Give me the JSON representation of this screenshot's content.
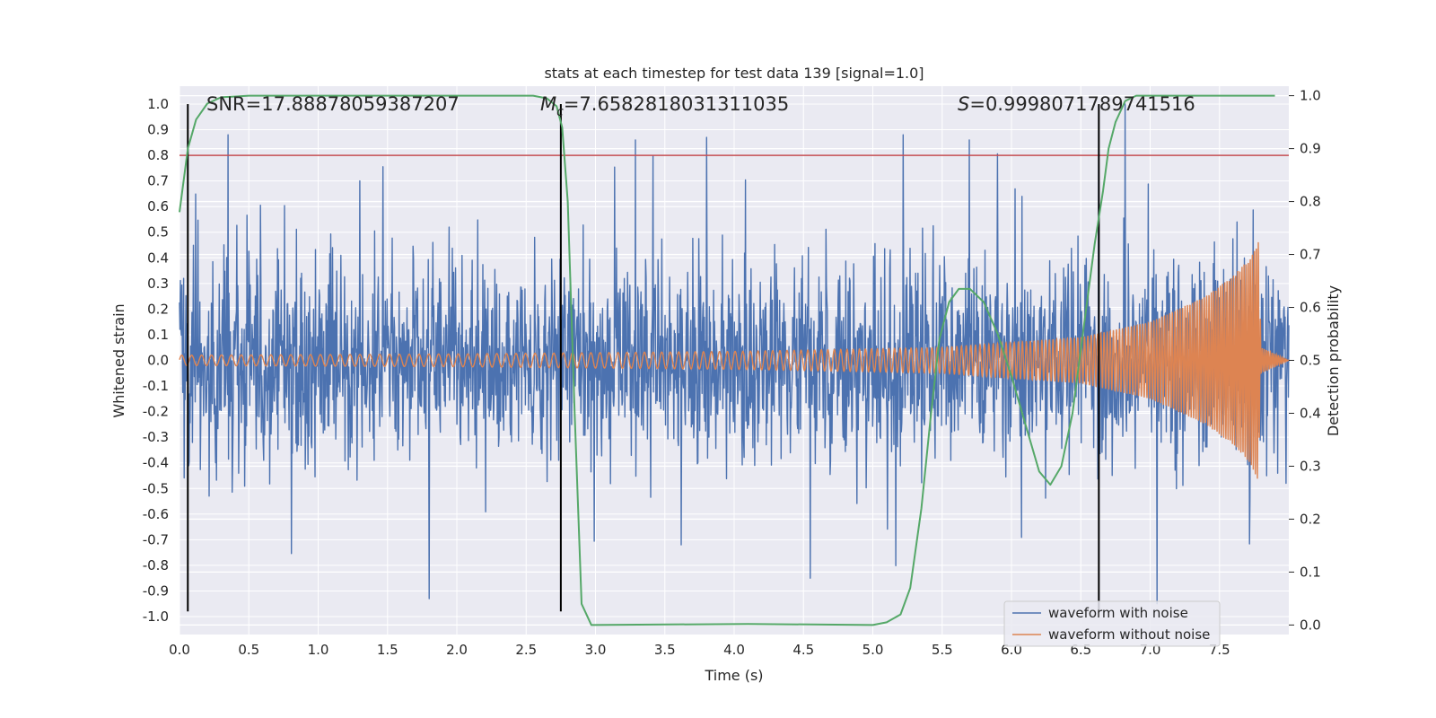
{
  "chart_data": {
    "type": "line",
    "title": "stats at each timestep for test data 139 [signal=1.0]",
    "xlabel": "Time (s)",
    "ylabel": "Whitened strain",
    "y2label": "Detection probability",
    "xlim": [
      0,
      8
    ],
    "ylim": [
      -1.07,
      1.07
    ],
    "y2lim": [
      -0.018,
      1.018
    ],
    "xticks": [
      "0.0",
      "0.5",
      "1.0",
      "1.5",
      "2.0",
      "2.5",
      "3.0",
      "3.5",
      "4.0",
      "4.5",
      "5.0",
      "5.5",
      "6.0",
      "6.5",
      "7.0",
      "7.5"
    ],
    "yticks": [
      "1.0",
      "0.9",
      "0.8",
      "0.7",
      "0.6",
      "0.5",
      "0.4",
      "0.3",
      "0.2",
      "0.1",
      "0.0",
      "-0.1",
      "-0.2",
      "-0.3",
      "-0.4",
      "-0.5",
      "-0.6",
      "-0.7",
      "-0.8",
      "-0.9",
      "-1.0"
    ],
    "y2ticks": [
      "1.0",
      "0.9",
      "0.8",
      "0.7",
      "0.6",
      "0.5",
      "0.4",
      "0.3",
      "0.2",
      "0.1",
      "0.0"
    ],
    "grid": true,
    "legend_position": "lower-right",
    "annotations": {
      "snr": "SNR=17.88878059387207",
      "mc_symbol": "M",
      "mc_sub": "c",
      "mc_value": "=7.6582818031311035",
      "s_symbol": "S",
      "s_value": "=0.9998071789741516"
    },
    "threshold_y": 0.8,
    "vlines_x": [
      0.06,
      2.75,
      6.63
    ],
    "series": [
      {
        "name": "waveform with noise",
        "color": "#4c72b0",
        "peaks": [
          {
            "x": 0.35,
            "y": 0.88
          },
          {
            "x": 1.3,
            "y": 0.7
          },
          {
            "x": 1.8,
            "y": -0.93
          },
          {
            "x": 3.8,
            "y": 0.87
          },
          {
            "x": 5.22,
            "y": 0.88
          },
          {
            "x": 6.82,
            "y": 1.0
          },
          {
            "x": 4.55,
            "y": -0.85
          },
          {
            "x": 7.05,
            "y": -0.95
          },
          {
            "x": 6.63,
            "y": 0.97
          }
        ]
      },
      {
        "name": "waveform without noise",
        "color": "#dd8452",
        "amplitude_envelope": [
          {
            "x": 0.0,
            "y": 0.02
          },
          {
            "x": 2.0,
            "y": 0.025
          },
          {
            "x": 4.0,
            "y": 0.035
          },
          {
            "x": 5.5,
            "y": 0.05
          },
          {
            "x": 6.5,
            "y": 0.09
          },
          {
            "x": 7.0,
            "y": 0.15
          },
          {
            "x": 7.4,
            "y": 0.25
          },
          {
            "x": 7.6,
            "y": 0.33
          },
          {
            "x": 7.72,
            "y": 0.4
          },
          {
            "x": 7.78,
            "y": 0.47
          },
          {
            "x": 7.8,
            "y": 0.05
          },
          {
            "x": 8.0,
            "y": 0.0
          }
        ],
        "freq_start": 14,
        "freq_end": 70
      },
      {
        "name": "detection probability",
        "color": "#55a868",
        "axis": "right",
        "points": [
          {
            "x": 0.0,
            "y": 0.78
          },
          {
            "x": 0.06,
            "y": 0.9
          },
          {
            "x": 0.12,
            "y": 0.955
          },
          {
            "x": 0.2,
            "y": 0.985
          },
          {
            "x": 0.3,
            "y": 0.997
          },
          {
            "x": 0.5,
            "y": 1.0
          },
          {
            "x": 2.55,
            "y": 1.0
          },
          {
            "x": 2.65,
            "y": 0.995
          },
          {
            "x": 2.72,
            "y": 0.98
          },
          {
            "x": 2.76,
            "y": 0.94
          },
          {
            "x": 2.8,
            "y": 0.8
          },
          {
            "x": 2.85,
            "y": 0.4
          },
          {
            "x": 2.9,
            "y": 0.04
          },
          {
            "x": 2.97,
            "y": 0.0
          },
          {
            "x": 4.1,
            "y": 0.002
          },
          {
            "x": 5.0,
            "y": 0.0
          },
          {
            "x": 5.1,
            "y": 0.005
          },
          {
            "x": 5.2,
            "y": 0.02
          },
          {
            "x": 5.27,
            "y": 0.07
          },
          {
            "x": 5.35,
            "y": 0.22
          },
          {
            "x": 5.42,
            "y": 0.4
          },
          {
            "x": 5.48,
            "y": 0.54
          },
          {
            "x": 5.55,
            "y": 0.61
          },
          {
            "x": 5.62,
            "y": 0.635
          },
          {
            "x": 5.7,
            "y": 0.635
          },
          {
            "x": 5.8,
            "y": 0.61
          },
          {
            "x": 5.9,
            "y": 0.55
          },
          {
            "x": 6.0,
            "y": 0.47
          },
          {
            "x": 6.1,
            "y": 0.38
          },
          {
            "x": 6.2,
            "y": 0.29
          },
          {
            "x": 6.28,
            "y": 0.265
          },
          {
            "x": 6.36,
            "y": 0.3
          },
          {
            "x": 6.44,
            "y": 0.4
          },
          {
            "x": 6.52,
            "y": 0.56
          },
          {
            "x": 6.6,
            "y": 0.72
          },
          {
            "x": 6.66,
            "y": 0.82
          },
          {
            "x": 6.7,
            "y": 0.9
          },
          {
            "x": 6.75,
            "y": 0.95
          },
          {
            "x": 6.82,
            "y": 0.99
          },
          {
            "x": 6.9,
            "y": 1.0
          },
          {
            "x": 7.9,
            "y": 1.0
          }
        ]
      }
    ]
  },
  "colors": {
    "background": "#eaeaf2",
    "grid": "#ffffff",
    "threshold": "#c44e52",
    "vline": "#000000"
  }
}
